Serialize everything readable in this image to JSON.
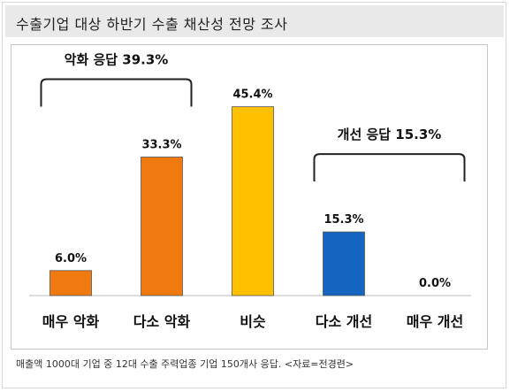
{
  "header": {
    "title": "수출기업 대상 하반기 수출 채산성 전망 조사"
  },
  "chart_data": {
    "type": "bar",
    "categories": [
      "매우 악화",
      "다소 악화",
      "비슷",
      "다소 개선",
      "매우 개선"
    ],
    "values": [
      6.0,
      33.3,
      45.4,
      15.3,
      0.0
    ],
    "value_labels": [
      "6.0%",
      "33.3%",
      "45.4%",
      "15.3%",
      "0.0%"
    ],
    "colors": [
      "#F07A10",
      "#F07A10",
      "#FFC000",
      "#1565C0",
      "#1565C0"
    ],
    "ylim": [
      0,
      50
    ],
    "grid": false,
    "brackets": [
      {
        "label": "악화 응답 39.3%",
        "from": 0,
        "to": 1
      },
      {
        "label": "개선 응답 15.3%",
        "from": 3,
        "to": 4
      }
    ]
  },
  "caption": "매출액 1000대 기업 중 12대 수출 주력업종 기업 150개사 응답. <자료=전경련>"
}
